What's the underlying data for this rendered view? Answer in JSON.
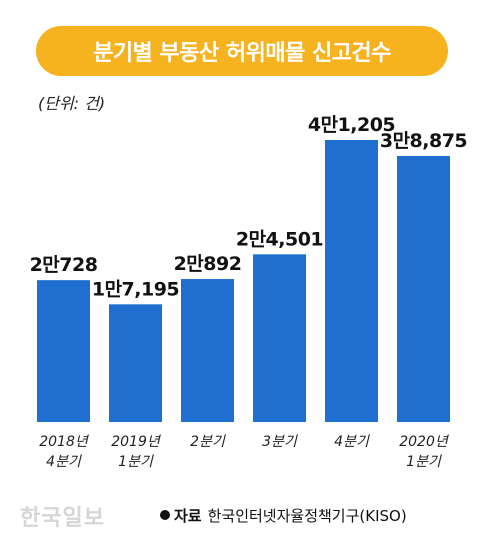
{
  "header": {
    "title": "분기별 부동산 허위매물 신고건수"
  },
  "unit_note": "(단위: 건)",
  "footer": {
    "watermark": "한국일보",
    "source_key": "자료",
    "source_text": "한국인터넷자율정책기구(KISO)"
  },
  "colors": {
    "bar": "#1e6fd0",
    "title_bg": "#f7b21f"
  },
  "chart_data": {
    "type": "bar",
    "title": "분기별 부동산 허위매물 신고건수",
    "categories": [
      [
        "2018년",
        "4분기"
      ],
      [
        "2019년",
        "1분기"
      ],
      [
        "2분기"
      ],
      [
        "3분기"
      ],
      [
        "4분기"
      ],
      [
        "2020년",
        "1분기"
      ]
    ],
    "values": [
      20728,
      17195,
      20892,
      24501,
      41205,
      38875
    ],
    "data_labels": [
      "2만728",
      "1만7,195",
      "2만892",
      "2만4,501",
      "4만1,205",
      "3만8,875"
    ],
    "ylim": [
      0,
      45000
    ],
    "xlabel": "",
    "ylabel": "",
    "grid": false
  }
}
